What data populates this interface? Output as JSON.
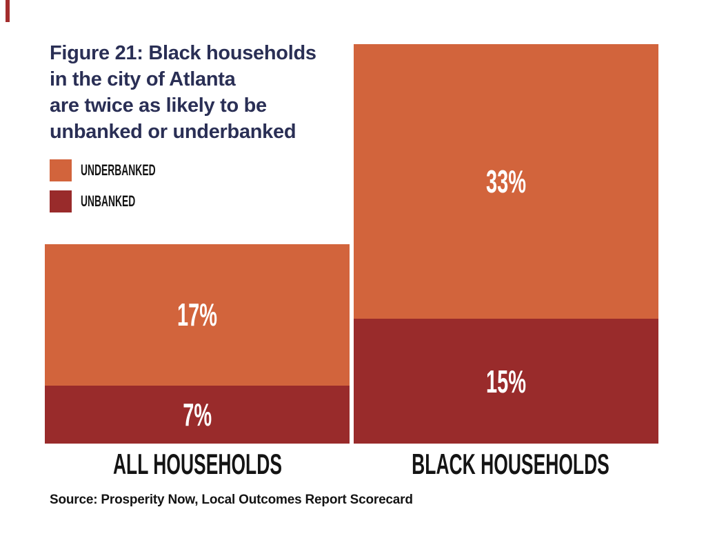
{
  "figure": {
    "title": "Figure 21: Black households\nin the city of Atlanta\nare twice as likely to be\nunbanked or underbanked",
    "source": "Source: Prosperity Now, Local Outcomes Report Scorecard"
  },
  "colors": {
    "title_text": "#2a2f55",
    "label_text": "#141414",
    "background": "#ffffff",
    "value_label_text": "#ffffff"
  },
  "chart_data": {
    "type": "bar",
    "stacked": true,
    "orientation": "vertical",
    "unit": "%",
    "title": "Figure 21: Black households\nin the city of Atlanta\nare twice as likely to be\nunbanked or underbanked",
    "source": "Source: Prosperity Now, Local Outcomes Report Scorecard",
    "categories": [
      "ALL HOUSEHOLDS",
      "BLACK HOUSEHOLDS"
    ],
    "series": [
      {
        "name": "UNDERBANKED",
        "color": "#d2643c",
        "values": [
          17,
          33
        ]
      },
      {
        "name": "UNBANKED",
        "color": "#992b2b",
        "values": [
          7,
          15
        ]
      }
    ],
    "totals": [
      24,
      48
    ],
    "ylim": [
      0,
      48
    ],
    "grid": false,
    "axes_shown": false,
    "legend_position": "top-left",
    "value_labels_inside_segments": true
  }
}
